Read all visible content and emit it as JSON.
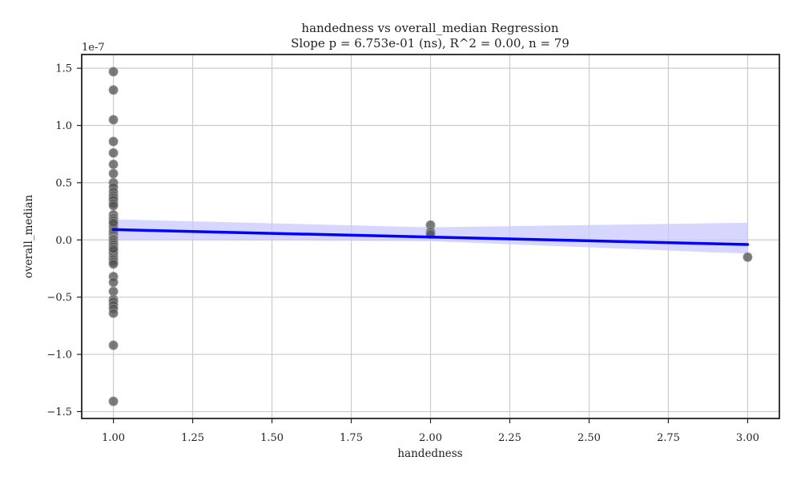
{
  "chart_data": {
    "type": "scatter",
    "title": "handedness vs overall_median Regression",
    "subtitle": "Slope p = 6.753e-01 (ns), R^2 = 0.00, n = 79",
    "xlabel": "handedness",
    "ylabel": "overall_median",
    "y_offset_label": "1e-7",
    "xlim": [
      0.9,
      3.1
    ],
    "ylim": [
      -1.56,
      1.62
    ],
    "x_ticks": [
      1.0,
      1.25,
      1.5,
      1.75,
      2.0,
      2.25,
      2.5,
      2.75,
      3.0
    ],
    "x_tick_labels": [
      "1.00",
      "1.25",
      "1.50",
      "1.75",
      "2.00",
      "2.25",
      "2.50",
      "2.75",
      "3.00"
    ],
    "y_ticks": [
      -1.5,
      -1.0,
      -0.5,
      0.0,
      0.5,
      1.0,
      1.5
    ],
    "y_tick_labels": [
      "−1.5",
      "−1.0",
      "−0.5",
      "0.0",
      "0.5",
      "1.0",
      "1.5"
    ],
    "grid": true,
    "points": {
      "x": [
        1,
        1,
        1,
        1,
        1,
        1,
        1,
        1,
        1,
        1,
        1,
        1,
        1,
        1,
        1,
        1,
        1,
        1,
        1,
        1,
        1,
        1,
        1,
        1,
        1,
        1,
        1,
        1,
        1,
        1,
        1,
        1,
        1,
        1,
        1,
        1,
        1,
        1,
        1,
        1,
        1,
        1,
        1,
        1,
        1,
        1,
        1,
        1,
        1,
        2,
        2,
        2,
        3
      ],
      "y": [
        1.47,
        1.31,
        1.05,
        0.86,
        0.76,
        0.66,
        0.58,
        0.5,
        0.46,
        0.42,
        0.39,
        0.37,
        0.35,
        0.32,
        0.3,
        0.22,
        0.19,
        0.17,
        0.14,
        0.11,
        0.08,
        0.06,
        0.04,
        0.02,
        0.01,
        0,
        -0.02,
        -0.04,
        -0.06,
        -0.08,
        -0.09,
        -0.1,
        -0.12,
        -0.15,
        -0.17,
        -0.19,
        -0.21,
        -0.32,
        -0.37,
        -0.45,
        -0.52,
        -0.54,
        -0.57,
        -0.6,
        -0.64,
        -0.92,
        -1.41,
        -0.08,
        0.15,
        0.13,
        0.07,
        0.05,
        -0.15
      ],
      "color": "#555555",
      "edge_color": "#999999"
    },
    "regression": {
      "x": [
        1.0,
        3.0
      ],
      "y": [
        0.09,
        -0.04
      ],
      "color": "#0000ff",
      "ci_color": "#c8c8ff",
      "ci_upper": [
        0.18,
        0.11,
        0.15
      ],
      "ci_lower": [
        0.0,
        -0.01,
        -0.12
      ],
      "ci_x": [
        1.0,
        2.0,
        3.0
      ]
    }
  }
}
